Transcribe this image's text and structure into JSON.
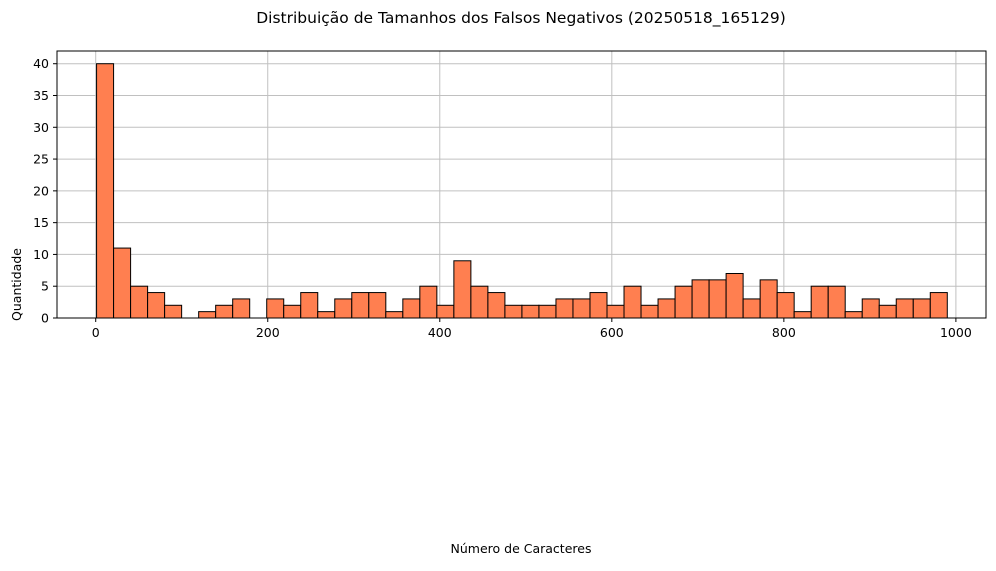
{
  "chart_data": {
    "type": "bar",
    "title": "Distribuição de Tamanhos dos Falsos Negativos (20250518_165129)",
    "xlabel": "Número de Caracteres",
    "ylabel": "Quantidade",
    "xlim": [
      -45,
      1035
    ],
    "ylim": [
      0,
      42
    ],
    "grid": true,
    "colors": {
      "bar_fill": "#ff7f50",
      "bar_edge": "#000000",
      "grid": "#c0c0c0"
    },
    "xticks": [
      0,
      200,
      400,
      600,
      800,
      1000
    ],
    "xtick_labels": [
      "0",
      "200",
      "400",
      "600",
      "800",
      "1000"
    ],
    "yticks": [
      0,
      5,
      10,
      15,
      20,
      25,
      30,
      35,
      40
    ],
    "ytick_labels": [
      "0",
      "5",
      "10",
      "15",
      "20",
      "25",
      "30",
      "35",
      "40"
    ],
    "bin_start": 1,
    "bin_width": 19.78,
    "values": [
      40,
      11,
      5,
      4,
      2,
      0,
      1,
      2,
      3,
      0,
      3,
      2,
      4,
      1,
      3,
      4,
      4,
      1,
      3,
      5,
      2,
      9,
      5,
      4,
      2,
      2,
      2,
      3,
      3,
      4,
      2,
      5,
      2,
      3,
      5,
      6,
      6,
      7,
      3,
      6,
      4,
      1,
      5,
      5,
      1,
      3,
      2,
      3,
      3,
      4
    ]
  }
}
